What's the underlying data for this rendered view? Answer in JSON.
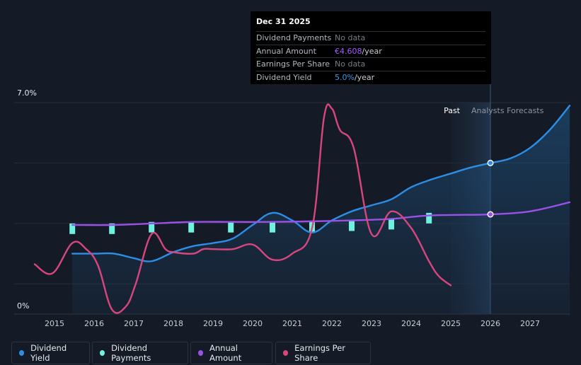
{
  "tooltip": {
    "date": "Dec 31 2025",
    "rows": [
      {
        "label": "Dividend Payments",
        "value": "No data",
        "unit": ""
      },
      {
        "label": "Annual Amount",
        "value": "€4.608",
        "unit": "/year"
      },
      {
        "label": "Earnings Per Share",
        "value": "No data",
        "unit": ""
      },
      {
        "label": "Dividend Yield",
        "value": "5.0%",
        "unit": "/year"
      }
    ]
  },
  "regions": {
    "past_label": "Past",
    "forecast_label": "Analysts Forecasts"
  },
  "legend": [
    {
      "label": "Dividend Yield",
      "color": "#2d8ee6"
    },
    {
      "label": "Dividend Payments",
      "color": "#6ff1df"
    },
    {
      "label": "Annual Amount",
      "color": "#9b51e8"
    },
    {
      "label": "Earnings Per Share",
      "color": "#d8467d"
    }
  ],
  "chart_data": {
    "type": "line",
    "y_axis_labels": [
      "7.0%",
      "0%"
    ],
    "ylim": [
      0,
      7
    ],
    "xlim": [
      2014.5,
      2028.0
    ],
    "x_ticks": [
      "2015",
      "2016",
      "2017",
      "2018",
      "2019",
      "2020",
      "2021",
      "2022",
      "2023",
      "2024",
      "2025",
      "2026",
      "2027"
    ],
    "grid": true,
    "forecast_start": 2025.0,
    "hover_x": 2026.0,
    "series": [
      {
        "name": "Dividend Yield",
        "color": "#2d8ee6",
        "fill": true,
        "points": [
          [
            2015.45,
            2.0
          ],
          [
            2016.0,
            2.0
          ],
          [
            2016.5,
            2.0
          ],
          [
            2017.0,
            1.85
          ],
          [
            2017.45,
            1.75
          ],
          [
            2018.0,
            2.05
          ],
          [
            2018.5,
            2.25
          ],
          [
            2019.0,
            2.35
          ],
          [
            2019.5,
            2.5
          ],
          [
            2020.0,
            2.95
          ],
          [
            2020.5,
            3.35
          ],
          [
            2021.0,
            3.1
          ],
          [
            2021.5,
            2.7
          ],
          [
            2022.0,
            3.1
          ],
          [
            2022.5,
            3.4
          ],
          [
            2023.0,
            3.6
          ],
          [
            2023.5,
            3.8
          ],
          [
            2024.0,
            4.2
          ],
          [
            2024.5,
            4.45
          ],
          [
            2025.0,
            4.65
          ],
          [
            2025.5,
            4.85
          ],
          [
            2026.0,
            5.0
          ],
          [
            2026.5,
            5.15
          ],
          [
            2027.0,
            5.5
          ],
          [
            2027.5,
            6.1
          ],
          [
            2028.0,
            6.9
          ]
        ]
      },
      {
        "name": "Annual Amount",
        "color": "#9b51e8",
        "fill": false,
        "points": [
          [
            2015.45,
            2.95
          ],
          [
            2016.5,
            2.95
          ],
          [
            2017.5,
            3.0
          ],
          [
            2018.5,
            3.05
          ],
          [
            2019.5,
            3.05
          ],
          [
            2020.5,
            3.05
          ],
          [
            2021.5,
            3.07
          ],
          [
            2022.5,
            3.1
          ],
          [
            2023.5,
            3.15
          ],
          [
            2024.3,
            3.25
          ],
          [
            2025.0,
            3.28
          ],
          [
            2026.0,
            3.3
          ],
          [
            2027.0,
            3.4
          ],
          [
            2028.0,
            3.7
          ]
        ]
      },
      {
        "name": "Earnings Per Share",
        "color": "#d8467d",
        "fill": false,
        "points": [
          [
            2014.5,
            1.65
          ],
          [
            2014.95,
            1.35
          ],
          [
            2015.45,
            2.35
          ],
          [
            2015.8,
            2.15
          ],
          [
            2016.1,
            1.6
          ],
          [
            2016.45,
            0.15
          ],
          [
            2016.8,
            0.25
          ],
          [
            2017.05,
            1.0
          ],
          [
            2017.45,
            2.65
          ],
          [
            2017.8,
            2.15
          ],
          [
            2018.0,
            2.05
          ],
          [
            2018.5,
            2.0
          ],
          [
            2018.75,
            2.15
          ],
          [
            2019.0,
            2.15
          ],
          [
            2019.5,
            2.15
          ],
          [
            2020.0,
            2.3
          ],
          [
            2020.5,
            1.8
          ],
          [
            2021.0,
            2.0
          ],
          [
            2021.5,
            2.85
          ],
          [
            2021.8,
            6.5
          ],
          [
            2022.0,
            6.8
          ],
          [
            2022.2,
            6.1
          ],
          [
            2022.55,
            5.5
          ],
          [
            2023.0,
            2.65
          ],
          [
            2023.5,
            3.4
          ],
          [
            2024.0,
            2.85
          ],
          [
            2024.45,
            1.75
          ],
          [
            2024.7,
            1.25
          ],
          [
            2025.0,
            0.95
          ]
        ]
      }
    ],
    "dividend_payments": [
      {
        "x": 2015.45,
        "value": 3.0
      },
      {
        "x": 2016.45,
        "value": 3.0
      },
      {
        "x": 2017.45,
        "value": 3.05
      },
      {
        "x": 2018.45,
        "value": 3.05
      },
      {
        "x": 2019.45,
        "value": 3.05
      },
      {
        "x": 2020.5,
        "value": 3.05
      },
      {
        "x": 2021.5,
        "value": 3.05
      },
      {
        "x": 2022.5,
        "value": 3.1
      },
      {
        "x": 2023.5,
        "value": 3.15
      },
      {
        "x": 2024.45,
        "value": 3.35
      }
    ]
  }
}
